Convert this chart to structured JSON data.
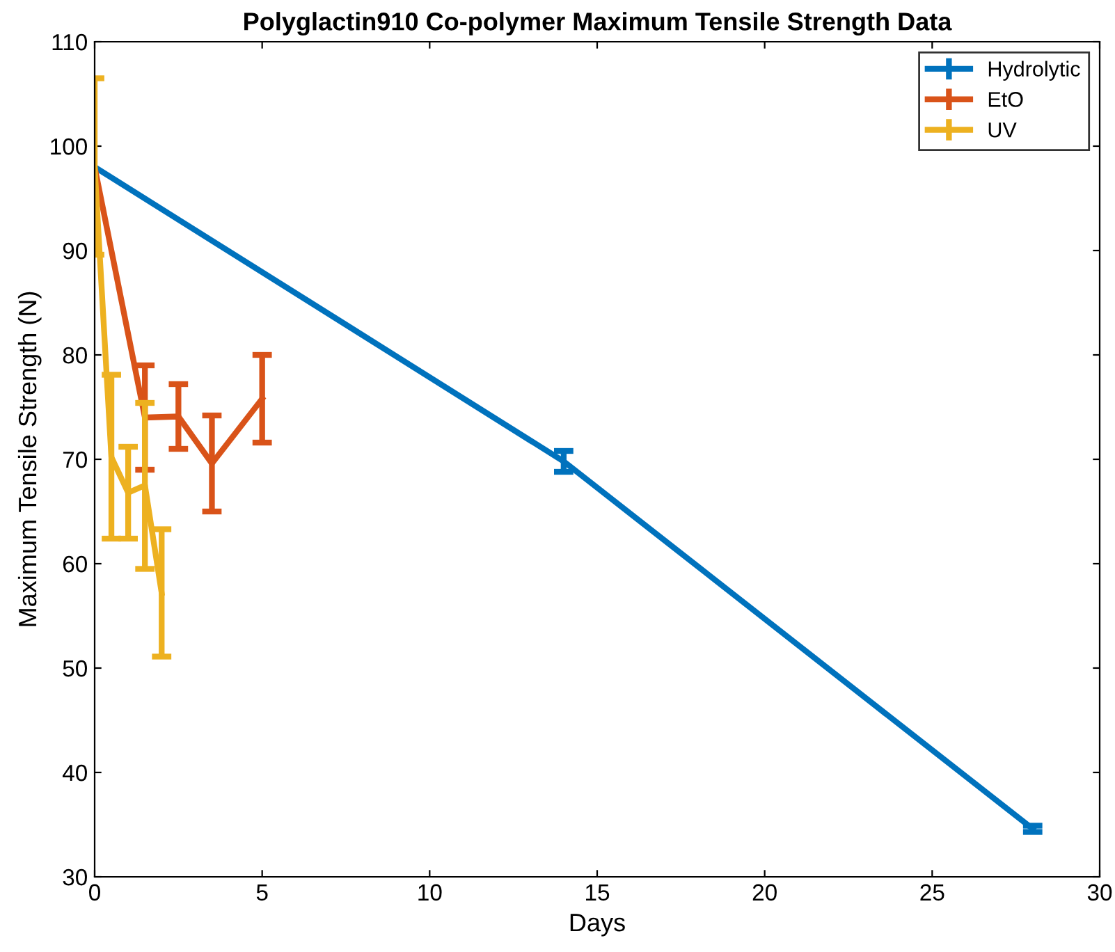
{
  "chart_data": {
    "type": "line",
    "title": "Polyglactin910 Co-polymer Maximum Tensile Strength Data",
    "xlabel": "Days",
    "ylabel": "Maximum Tensile Strength (N)",
    "xlim": [
      0,
      30
    ],
    "xticks": [
      0,
      5,
      10,
      15,
      20,
      25,
      30
    ],
    "ylim": [
      30,
      110
    ],
    "yticks": [
      30,
      40,
      50,
      60,
      70,
      80,
      90,
      100,
      110
    ],
    "grid": false,
    "legend": "top right",
    "marker": "none",
    "line_style": "solid",
    "series": [
      {
        "name": "Hydrolytic",
        "color": "#0072bd",
        "x": [
          0,
          14,
          28
        ],
        "values": [
          98,
          69.8,
          34.6
        ],
        "errors": [
          null,
          1,
          0.3
        ]
      },
      {
        "name": "EtO",
        "color": "#d95319",
        "x": [
          0,
          1.5,
          2.5,
          3.5,
          5
        ],
        "values": [
          98,
          74,
          74.1,
          69.6,
          75.8
        ],
        "errors": [
          null,
          5,
          3.1,
          4.6,
          4.2
        ]
      },
      {
        "name": "UV",
        "color": "#edb120",
        "x": [
          0,
          0.5,
          1,
          1.5,
          2
        ],
        "values": [
          98,
          70.2,
          66.8,
          67.5,
          57.2
        ],
        "errors": [
          [
            89.6,
            106.5
          ],
          [
            62.4,
            78.1
          ],
          [
            62.4,
            71.2
          ],
          [
            59.5,
            75.4
          ],
          [
            51.1,
            63.3
          ]
        ]
      }
    ]
  }
}
